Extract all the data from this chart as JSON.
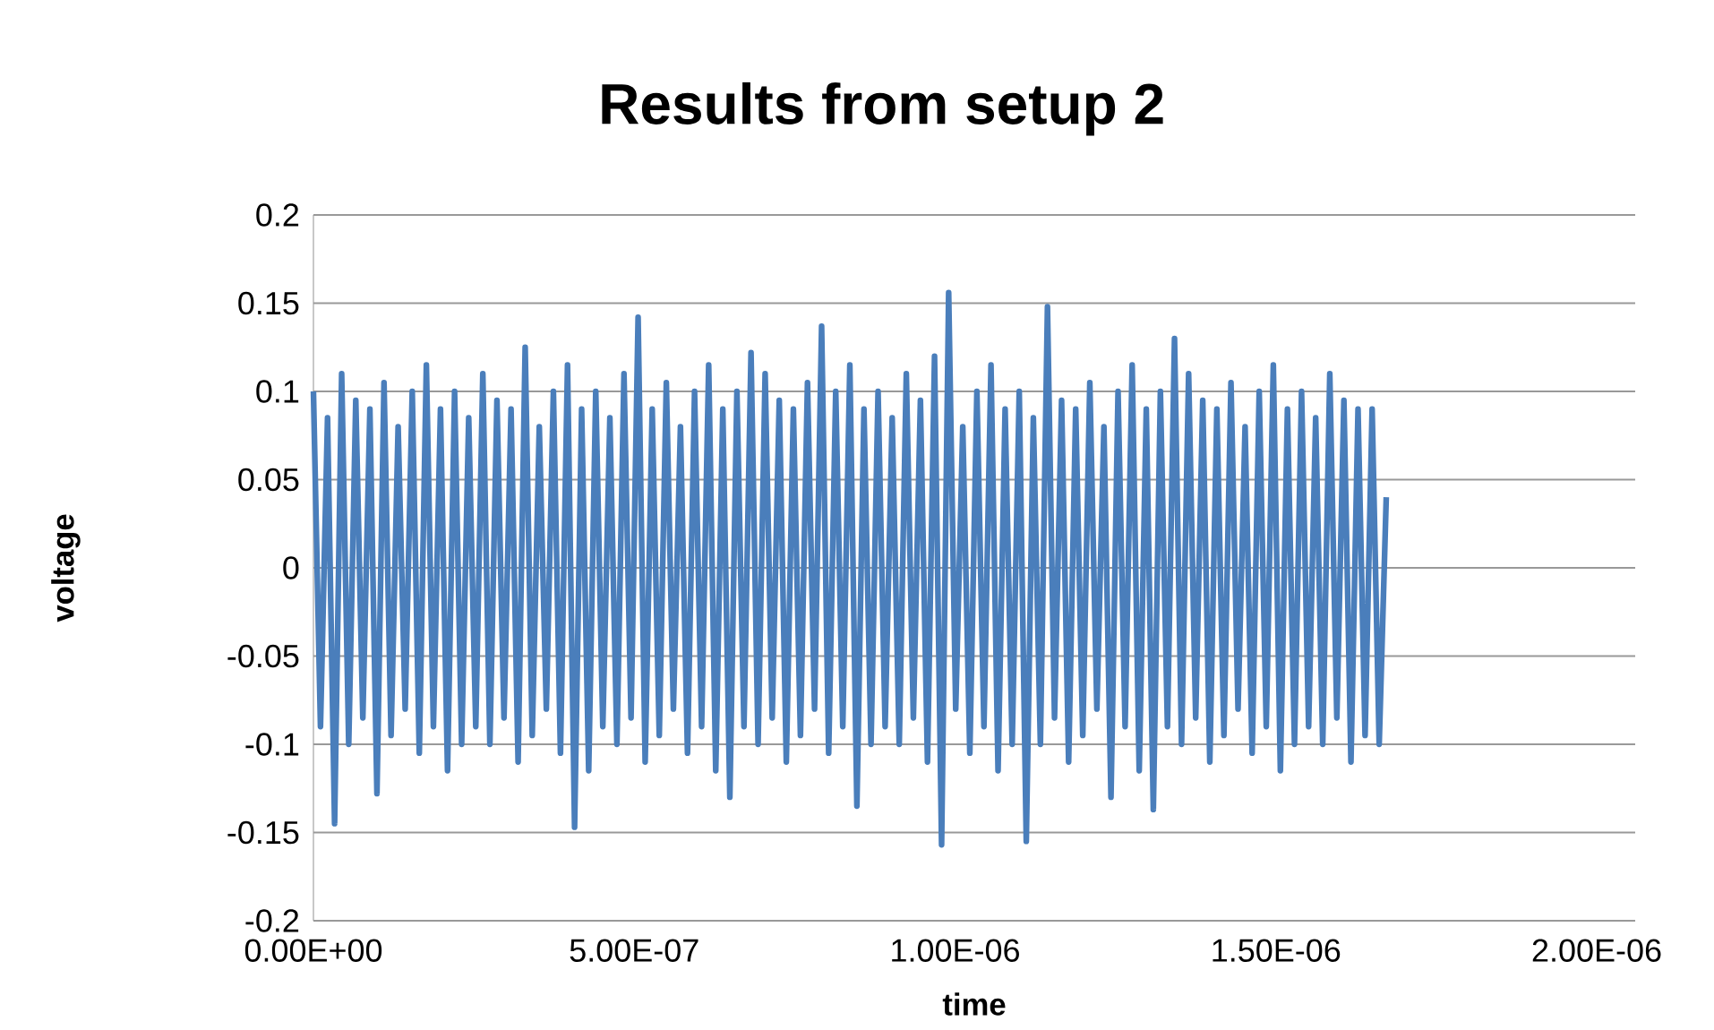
{
  "chart_data": {
    "type": "line",
    "title": "Results from setup 2",
    "xlabel": "time",
    "ylabel": "voltage",
    "x": [
      0,
      1.1e-08,
      2.2e-08,
      3.3e-08,
      4.4e-08,
      5.5e-08,
      6.6e-08,
      7.7e-08,
      8.8e-08,
      9.9e-08,
      1.1e-07,
      1.21e-07,
      1.32e-07,
      1.43e-07,
      1.54e-07,
      1.65e-07,
      1.76e-07,
      1.87e-07,
      1.98e-07,
      2.09e-07,
      2.2e-07,
      2.31e-07,
      2.42e-07,
      2.53e-07,
      2.64e-07,
      2.75e-07,
      2.86e-07,
      2.97e-07,
      3.08e-07,
      3.19e-07,
      3.3e-07,
      3.41e-07,
      3.52e-07,
      3.63e-07,
      3.74e-07,
      3.85e-07,
      3.96e-07,
      4.07e-07,
      4.18e-07,
      4.29e-07,
      4.4e-07,
      4.51e-07,
      4.62e-07,
      4.73e-07,
      4.84e-07,
      4.95e-07,
      5.06e-07,
      5.17e-07,
      5.28e-07,
      5.39e-07,
      5.5e-07,
      5.61e-07,
      5.72e-07,
      5.83e-07,
      5.94e-07,
      6.05e-07,
      6.16e-07,
      6.27e-07,
      6.38e-07,
      6.49e-07,
      6.6e-07,
      6.71e-07,
      6.82e-07,
      6.93e-07,
      7.04e-07,
      7.15e-07,
      7.26e-07,
      7.37e-07,
      7.48e-07,
      7.59e-07,
      7.7e-07,
      7.81e-07,
      7.92e-07,
      8.03e-07,
      8.14e-07,
      8.25e-07,
      8.36e-07,
      8.47e-07,
      8.58e-07,
      8.69e-07,
      8.8e-07,
      8.91e-07,
      9.02e-07,
      9.13e-07,
      9.24e-07,
      9.35e-07,
      9.46e-07,
      9.57e-07,
      9.68e-07,
      9.79e-07,
      9.9e-07,
      1.001e-06,
      1.012e-06,
      1.023e-06,
      1.034e-06,
      1.045e-06,
      1.056e-06,
      1.067e-06,
      1.078e-06,
      1.089e-06,
      1.1e-06,
      1.111e-06,
      1.122e-06,
      1.133e-06,
      1.144e-06,
      1.155e-06,
      1.166e-06,
      1.177e-06,
      1.188e-06,
      1.199e-06,
      1.21e-06,
      1.221e-06,
      1.232e-06,
      1.243e-06,
      1.254e-06,
      1.265e-06,
      1.276e-06,
      1.287e-06,
      1.298e-06,
      1.309e-06,
      1.32e-06,
      1.331e-06,
      1.342e-06,
      1.353e-06,
      1.364e-06,
      1.375e-06,
      1.386e-06,
      1.397e-06,
      1.408e-06,
      1.419e-06,
      1.43e-06,
      1.441e-06,
      1.452e-06,
      1.463e-06,
      1.474e-06,
      1.485e-06,
      1.496e-06,
      1.507e-06,
      1.518e-06,
      1.529e-06,
      1.54e-06,
      1.551e-06,
      1.562e-06,
      1.573e-06,
      1.584e-06,
      1.595e-06,
      1.606e-06,
      1.617e-06,
      1.628e-06,
      1.639e-06,
      1.65e-06,
      1.661e-06,
      1.672e-06
    ],
    "series": [
      {
        "color": "#4a7ebb",
        "values": [
          0.1,
          -0.09,
          0.085,
          -0.145,
          0.11,
          -0.1,
          0.095,
          -0.085,
          0.09,
          -0.128,
          0.105,
          -0.095,
          0.08,
          -0.08,
          0.1,
          -0.105,
          0.115,
          -0.09,
          0.09,
          -0.115,
          0.1,
          -0.1,
          0.085,
          -0.09,
          0.11,
          -0.1,
          0.095,
          -0.085,
          0.09,
          -0.11,
          0.125,
          -0.095,
          0.08,
          -0.08,
          0.1,
          -0.105,
          0.115,
          -0.147,
          0.09,
          -0.115,
          0.1,
          -0.09,
          0.085,
          -0.1,
          0.11,
          -0.085,
          0.142,
          -0.11,
          0.09,
          -0.095,
          0.105,
          -0.08,
          0.08,
          -0.105,
          0.1,
          -0.09,
          0.115,
          -0.115,
          0.09,
          -0.13,
          0.1,
          -0.09,
          0.122,
          -0.1,
          0.11,
          -0.085,
          0.095,
          -0.11,
          0.09,
          -0.095,
          0.105,
          -0.08,
          0.137,
          -0.105,
          0.1,
          -0.09,
          0.115,
          -0.135,
          0.09,
          -0.1,
          0.1,
          -0.09,
          0.085,
          -0.1,
          0.11,
          -0.085,
          0.095,
          -0.11,
          0.12,
          -0.157,
          0.156,
          -0.08,
          0.08,
          -0.105,
          0.1,
          -0.09,
          0.115,
          -0.115,
          0.09,
          -0.1,
          0.1,
          -0.155,
          0.085,
          -0.1,
          0.148,
          -0.085,
          0.095,
          -0.11,
          0.09,
          -0.095,
          0.105,
          -0.08,
          0.08,
          -0.13,
          0.1,
          -0.09,
          0.115,
          -0.115,
          0.09,
          -0.137,
          0.1,
          -0.09,
          0.13,
          -0.1,
          0.11,
          -0.085,
          0.095,
          -0.11,
          0.09,
          -0.095,
          0.105,
          -0.08,
          0.08,
          -0.105,
          0.1,
          -0.09,
          0.115,
          -0.115,
          0.09,
          -0.1,
          0.1,
          -0.09,
          0.085,
          -0.1,
          0.11,
          -0.085,
          0.095,
          -0.11,
          0.09,
          -0.095,
          0.09,
          -0.1,
          0.04
        ]
      }
    ],
    "xlim": [
      0,
      2.06e-06
    ],
    "ylim": [
      -0.2,
      0.2
    ],
    "xticks": [
      {
        "value": 0,
        "label": "0.00E+00"
      },
      {
        "value": 5e-07,
        "label": "5.00E-07"
      },
      {
        "value": 1e-06,
        "label": "1.00E-06"
      },
      {
        "value": 1.5e-06,
        "label": "1.50E-06"
      },
      {
        "value": 2e-06,
        "label": "2.00E-06"
      }
    ],
    "yticks": [
      -0.2,
      -0.15,
      -0.1,
      -0.05,
      0,
      0.05,
      0.1,
      0.15,
      0.2
    ],
    "grid": "y"
  }
}
